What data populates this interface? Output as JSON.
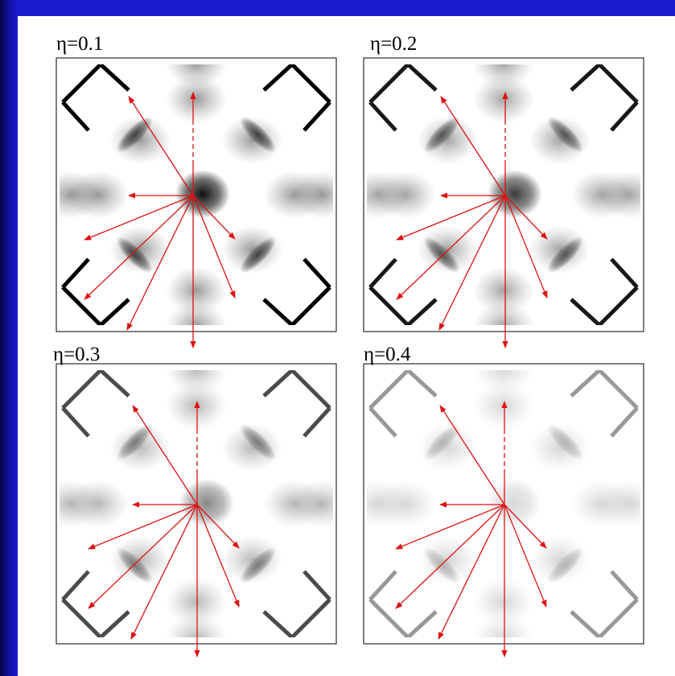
{
  "panels": [
    {
      "label": "η=0.1"
    },
    {
      "label": "η=0.2"
    },
    {
      "label": "η=0.3"
    },
    {
      "label": "η=0.4"
    }
  ]
}
